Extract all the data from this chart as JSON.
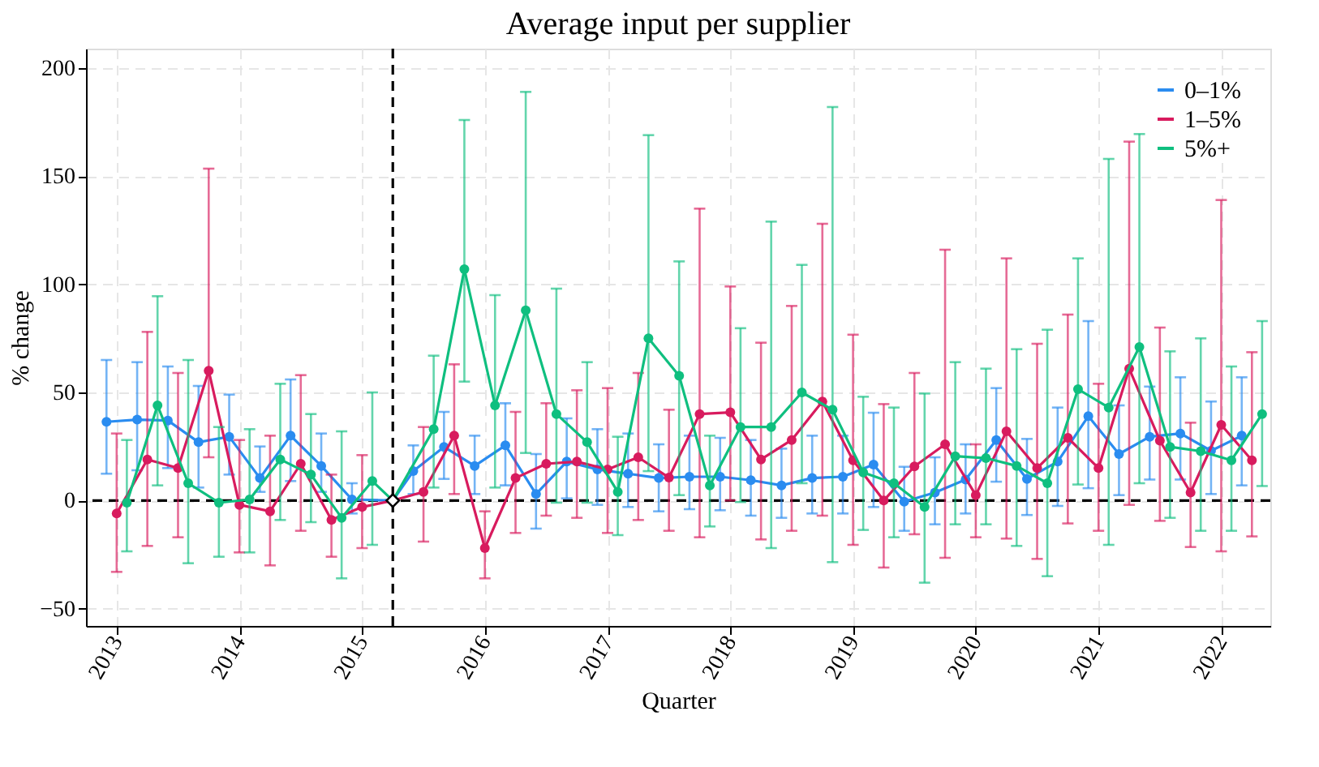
{
  "chart_data": {
    "type": "line",
    "title": "Average input per supplier",
    "xlabel": "Quarter",
    "ylabel": "% change",
    "xlim": [
      2012.75,
      2022.4
    ],
    "xticks": [
      2013,
      2014,
      2015,
      2016,
      2017,
      2018,
      2019,
      2020,
      2021,
      2022
    ],
    "ylim": [
      -58,
      209
    ],
    "yticks": [
      -50,
      0,
      50,
      100,
      150,
      200
    ],
    "grid": true,
    "legend": "top right",
    "marker": "circle",
    "line_style": "solid",
    "ref_lines": [
      {
        "axis": "y",
        "value": 0,
        "color": "#000000",
        "line_style": "dashed"
      },
      {
        "axis": "x",
        "value": 2015.25,
        "color": "#000000",
        "line_style": "dashed"
      }
    ],
    "series": [
      {
        "name": "0–1%",
        "color": "#2a8cf0",
        "x": [
          2012.917,
          2013.167,
          2013.417,
          2013.667,
          2013.917,
          2014.167,
          2014.417,
          2014.667,
          2014.917,
          2015.25,
          2015.417,
          2015.667,
          2015.917,
          2016.167,
          2016.417,
          2016.667,
          2016.917,
          2017.167,
          2017.417,
          2017.667,
          2017.917,
          2018.167,
          2018.417,
          2018.667,
          2018.917,
          2019.167,
          2019.417,
          2019.667,
          2019.917,
          2020.167,
          2020.417,
          2020.667,
          2020.917,
          2021.167,
          2021.417,
          2021.667,
          2021.917,
          2022.167
        ],
        "values": [
          36.4,
          37.4,
          37,
          27,
          29.5,
          10.4,
          30,
          16,
          0.5,
          0,
          13.6,
          24.8,
          16,
          25.5,
          3,
          18,
          14.4,
          12.4,
          10.4,
          11,
          11,
          9.4,
          7,
          10.4,
          11,
          16.6,
          -0.5,
          3.7,
          9.7,
          28,
          10,
          18,
          39,
          21.5,
          29.5,
          31,
          23,
          30
        ],
        "errors": [
          [
            12.4,
            65
          ],
          [
            14,
            64
          ],
          [
            15,
            62
          ],
          [
            6,
            53
          ],
          [
            12,
            49
          ],
          [
            4,
            25
          ],
          [
            9,
            56
          ],
          [
            4,
            31
          ],
          [
            -6,
            8
          ],
          null,
          [
            3,
            25.5
          ],
          [
            10,
            41
          ],
          [
            3,
            30
          ],
          [
            7,
            45
          ],
          [
            -13,
            21.5
          ],
          [
            1,
            38
          ],
          [
            -2,
            33
          ],
          [
            -3,
            31
          ],
          [
            -5,
            26
          ],
          [
            -4,
            30
          ],
          [
            -4.5,
            29
          ],
          [
            -7,
            28
          ],
          [
            -8,
            24
          ],
          [
            -6,
            30
          ],
          [
            -6,
            30
          ],
          [
            -3,
            40.6
          ],
          [
            -14,
            15.6
          ],
          [
            -11,
            20
          ],
          [
            -6,
            26
          ],
          [
            8.7,
            52
          ],
          [
            -6.7,
            28.5
          ],
          [
            -2.5,
            43
          ],
          [
            5.7,
            83
          ],
          [
            2.5,
            44
          ],
          [
            9.7,
            52.7
          ],
          [
            9.7,
            57
          ],
          [
            3,
            45.8
          ],
          [
            7,
            57
          ]
        ]
      },
      {
        "name": "1–5%",
        "color": "#d81b5e",
        "x": [
          2013,
          2013.25,
          2013.5,
          2013.75,
          2014,
          2014.25,
          2014.5,
          2014.75,
          2015,
          2015.25,
          2015.5,
          2015.75,
          2016,
          2016.25,
          2016.5,
          2016.75,
          2017,
          2017.25,
          2017.5,
          2017.75,
          2018,
          2018.25,
          2018.5,
          2018.75,
          2019,
          2019.25,
          2019.5,
          2019.75,
          2020,
          2020.25,
          2020.5,
          2020.75,
          2021,
          2021.25,
          2021.5,
          2021.75,
          2022,
          2022.25
        ],
        "values": [
          -6,
          19,
          15,
          60,
          -2,
          -5,
          17,
          -9,
          -3,
          0,
          4,
          30,
          -22,
          10.4,
          17,
          18,
          14.4,
          20,
          10.6,
          40,
          40.8,
          19,
          28,
          45.8,
          18.6,
          0,
          15.8,
          26,
          2.5,
          32,
          15,
          29,
          15,
          61,
          27.7,
          3.7,
          35,
          18.6
        ],
        "errors": [
          [
            -33,
            31
          ],
          [
            -21,
            78
          ],
          [
            -17,
            59
          ],
          [
            20,
            153.5
          ],
          [
            -24,
            28
          ],
          [
            -30,
            30
          ],
          [
            -14,
            58
          ],
          [
            -26,
            12
          ],
          [
            -22,
            21
          ],
          null,
          [
            -19,
            34
          ],
          [
            3,
            63
          ],
          [
            -36,
            -5
          ],
          [
            -15,
            41
          ],
          [
            -7,
            45
          ],
          [
            -8,
            51
          ],
          [
            -15,
            52
          ],
          [
            -9,
            59
          ],
          [
            -14,
            42
          ],
          [
            -17,
            135
          ],
          [
            0,
            99
          ],
          [
            -18,
            73
          ],
          [
            -14,
            90
          ],
          [
            -7,
            128
          ],
          [
            -20.5,
            76.7
          ],
          [
            -31,
            44.6
          ],
          [
            -15.6,
            59
          ],
          [
            -26.5,
            116
          ],
          [
            -17,
            26
          ],
          [
            -17.6,
            112
          ],
          [
            -27,
            72.5
          ],
          [
            -10.6,
            86
          ],
          [
            -14,
            54
          ],
          [
            -2,
            166
          ],
          [
            -9.4,
            80
          ],
          [
            -21.5,
            36
          ],
          [
            -23.5,
            139
          ],
          [
            -16.6,
            68.6
          ]
        ]
      },
      {
        "name": "5%+",
        "color": "#0fbf7f",
        "x": [
          2013.083,
          2013.333,
          2013.583,
          2013.833,
          2014.083,
          2014.333,
          2014.583,
          2014.833,
          2015.083,
          2015.25,
          2015.583,
          2015.833,
          2016.083,
          2016.333,
          2016.583,
          2016.833,
          2017.083,
          2017.333,
          2017.583,
          2017.833,
          2018.083,
          2018.333,
          2018.583,
          2018.833,
          2019.083,
          2019.333,
          2019.583,
          2019.833,
          2020.083,
          2020.333,
          2020.583,
          2020.833,
          2021.083,
          2021.333,
          2021.583,
          2021.833,
          2022.083,
          2022.333
        ],
        "values": [
          -1,
          44,
          8,
          -1,
          0.5,
          19,
          12,
          -8,
          9,
          0,
          33,
          107,
          44,
          88,
          40,
          27,
          4,
          75,
          57.7,
          7,
          34,
          34,
          50,
          42,
          13,
          8,
          -3,
          20.5,
          19.6,
          16,
          8,
          51.5,
          43,
          71,
          24.8,
          22.8,
          18.6,
          40
        ],
        "errors": [
          [
            -23.5,
            28
          ],
          [
            7,
            94.5
          ],
          [
            -29,
            65
          ],
          [
            -26,
            34
          ],
          [
            -24,
            33
          ],
          [
            -9,
            54
          ],
          [
            -10,
            40
          ],
          [
            -36,
            32
          ],
          [
            -20.5,
            50
          ],
          null,
          [
            6,
            67
          ],
          [
            55,
            176
          ],
          [
            6,
            95
          ],
          [
            22,
            189
          ],
          [
            -1,
            98
          ],
          [
            -1,
            64
          ],
          [
            -16,
            29.5
          ],
          [
            13.6,
            169
          ],
          [
            2.5,
            110.6
          ],
          [
            -12,
            30
          ],
          [
            -0.7,
            79.7
          ],
          [
            -22,
            129
          ],
          [
            8,
            109
          ],
          [
            -28.5,
            182
          ],
          [
            -13.6,
            48
          ],
          [
            -17,
            43
          ],
          [
            -38,
            49.5
          ],
          [
            -11,
            64
          ],
          [
            -11,
            61
          ],
          [
            -21,
            70
          ],
          [
            -35,
            79
          ],
          [
            7.4,
            112
          ],
          [
            -20.5,
            158
          ],
          [
            8,
            169.5
          ],
          [
            -8,
            69
          ],
          [
            -14,
            75
          ],
          [
            -14,
            62
          ],
          [
            6.7,
            83
          ]
        ]
      },
      {
        "type": "scatter",
        "marker": "diamond",
        "color": "#ffffff",
        "x": [
          2015.25
        ],
        "values": [
          0
        ]
      }
    ]
  }
}
